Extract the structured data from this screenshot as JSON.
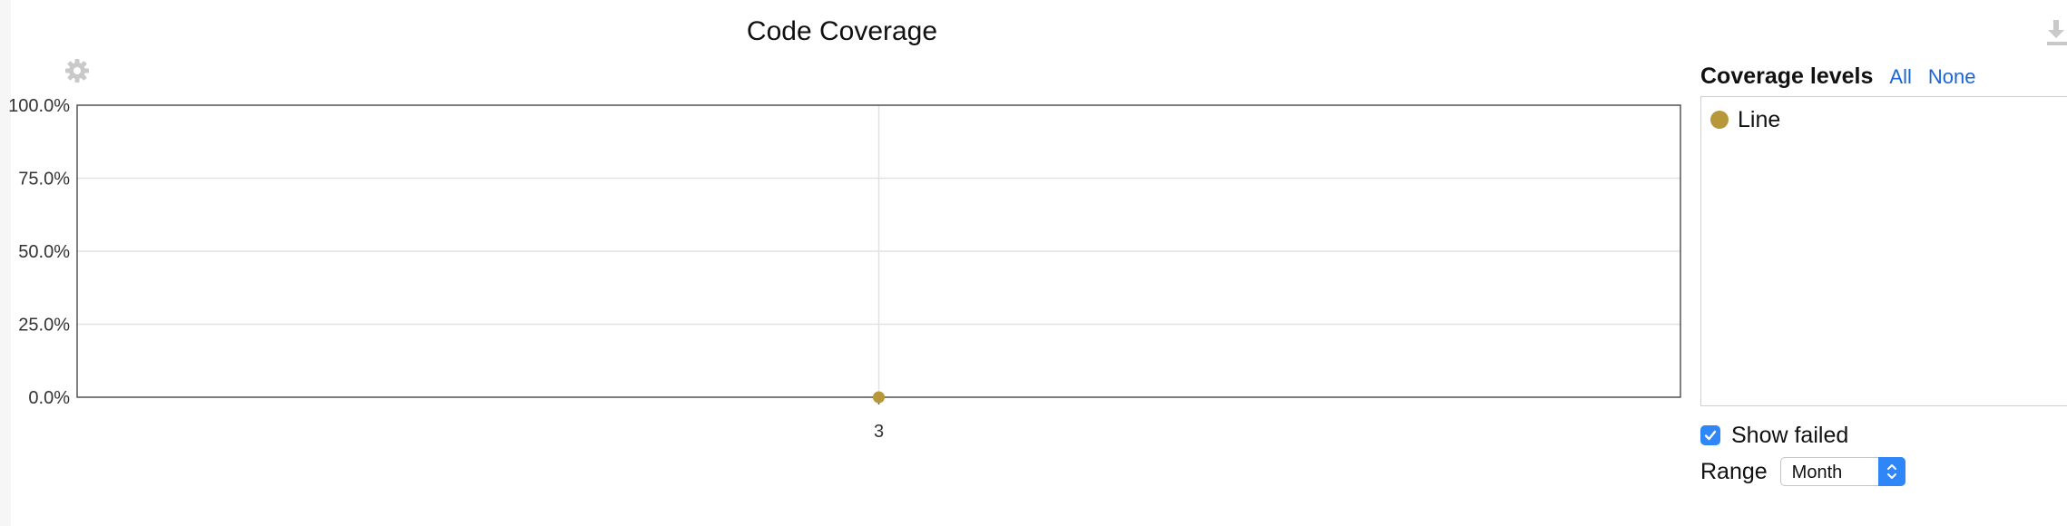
{
  "chart": {
    "title": "Code Coverage",
    "settings_icon": "gear-icon",
    "download_icon": "download-icon"
  },
  "chart_data": {
    "type": "line",
    "title": "Code Coverage",
    "xlabel": "",
    "ylabel": "",
    "categories": [
      "3"
    ],
    "ylim": [
      0,
      100
    ],
    "y_ticks": [
      "0.0%",
      "25.0%",
      "50.0%",
      "75.0%",
      "100.0%"
    ],
    "y_tick_values": [
      0,
      25,
      50,
      75,
      100
    ],
    "grid": true,
    "legend_position": "right",
    "series": [
      {
        "name": "Line",
        "values": [
          0
        ],
        "color": "#b8963a"
      }
    ]
  },
  "panel": {
    "title": "Coverage levels",
    "all_link": "All",
    "none_link": "None",
    "levels": [
      {
        "label": "Line",
        "color": "#b8963a"
      }
    ],
    "show_failed_label": "Show failed",
    "show_failed_checked": true,
    "range_label": "Range",
    "range_value": "Month"
  },
  "colors": {
    "accent": "#2f86f6",
    "link": "#1a66d6",
    "grid": "#e2e2e2",
    "series_line": "#b8963a"
  }
}
